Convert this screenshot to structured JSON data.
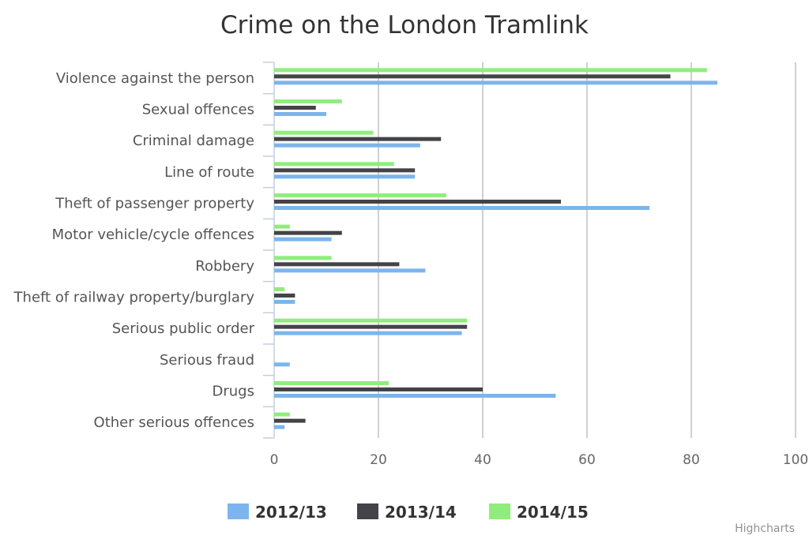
{
  "chart_data": {
    "type": "bar",
    "orientation": "horizontal",
    "title": "Crime on the London Tramlink",
    "categories": [
      "Violence against the person",
      "Sexual offences",
      "Criminal damage",
      "Line of route",
      "Theft of passenger property",
      "Motor vehicle/cycle offences",
      "Robbery",
      "Theft of railway property/burglary",
      "Serious public order",
      "Serious fraud",
      "Drugs",
      "Other serious offences"
    ],
    "series": [
      {
        "name": "2012/13",
        "color": "#7cb5ec",
        "values": [
          85,
          10,
          28,
          27,
          72,
          11,
          29,
          4,
          36,
          3,
          54,
          2
        ]
      },
      {
        "name": "2013/14",
        "color": "#434348",
        "values": [
          76,
          8,
          32,
          27,
          55,
          13,
          24,
          4,
          37,
          0,
          40,
          6
        ]
      },
      {
        "name": "2014/15",
        "color": "#90ed7d",
        "values": [
          83,
          13,
          19,
          23,
          33,
          3,
          11,
          2,
          37,
          0,
          22,
          3
        ]
      }
    ],
    "xlim": [
      0,
      100
    ],
    "x_ticks": [
      "0",
      "20",
      "40",
      "60",
      "80",
      "100"
    ],
    "grid": true,
    "legend_position": "bottom"
  },
  "credit": "Highcharts"
}
